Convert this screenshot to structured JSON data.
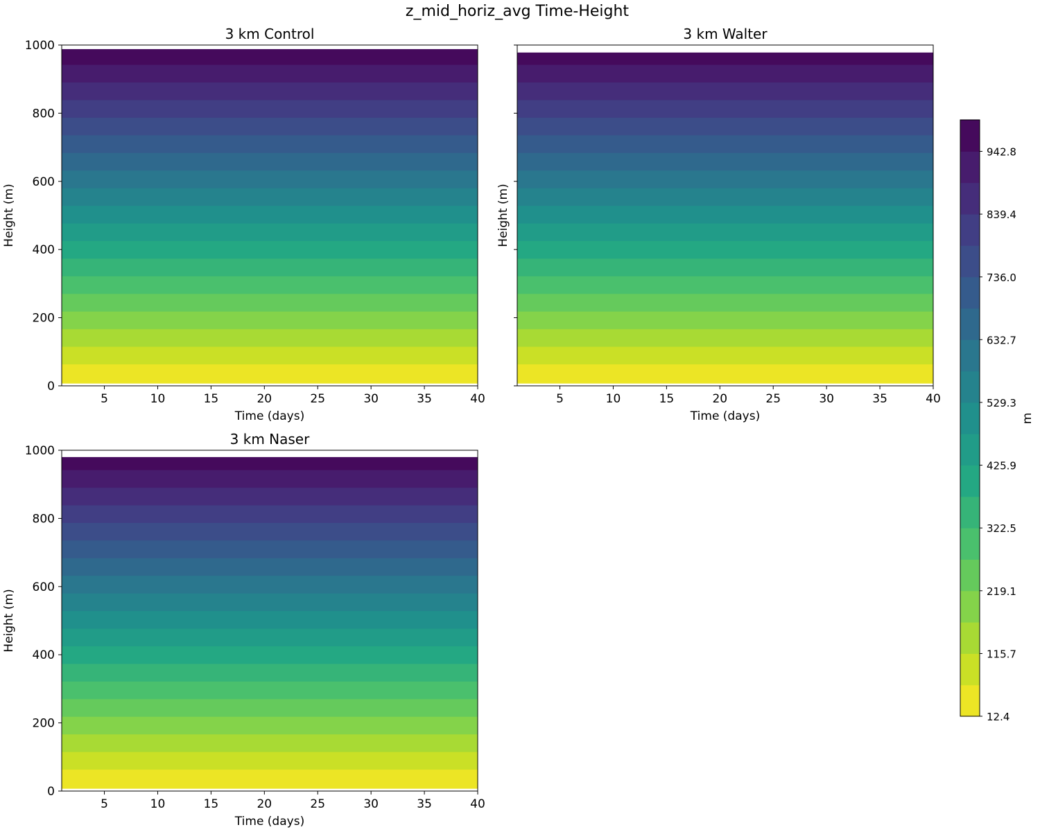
{
  "chart_data": {
    "type": "heatmap",
    "title": "z_mid_horiz_avg Time-Height",
    "colormap": "viridis",
    "levels_start": 12.4,
    "levels_step": 51.7,
    "levels_count": 19,
    "colorbar": {
      "label": "m",
      "ticks": [
        "12.4",
        "115.7",
        "219.1",
        "322.5",
        "425.9",
        "529.3",
        "632.7",
        "736.0",
        "839.4",
        "942.8"
      ],
      "range": [
        12.4,
        994.7
      ]
    },
    "panels": [
      {
        "title": "3 km Control",
        "xlabel": "Time (days)",
        "ylabel": "Height (m)",
        "xlim": [
          1,
          40
        ],
        "ylim": [
          0,
          1000
        ],
        "data_bottom": 8,
        "data_top": 988,
        "show_ylabels": true
      },
      {
        "title": "3 km Walter",
        "xlabel": "Time (days)",
        "ylabel": "Height (m)",
        "xlim": [
          1,
          40
        ],
        "ylim": [
          0,
          1000
        ],
        "data_bottom": 8,
        "data_top": 978,
        "show_ylabels": false
      },
      {
        "title": "3 km Naser",
        "xlabel": "Time (days)",
        "ylabel": "Height (m)",
        "xlim": [
          1,
          40
        ],
        "ylim": [
          0,
          1000
        ],
        "data_bottom": 8,
        "data_top": 980,
        "show_ylabels": true
      }
    ],
    "xticks": [
      "5",
      "10",
      "15",
      "20",
      "25",
      "30",
      "35",
      "40"
    ],
    "yticks": [
      "0",
      "200",
      "400",
      "600",
      "800",
      "1000"
    ]
  }
}
